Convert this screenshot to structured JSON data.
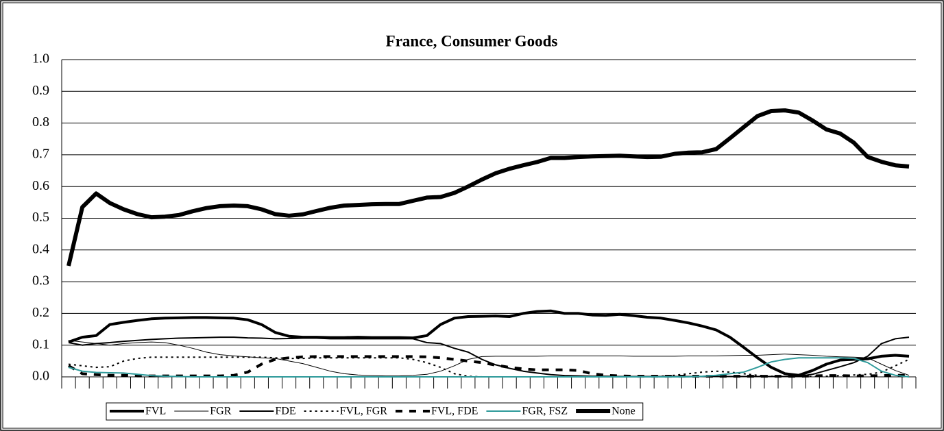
{
  "chart_data": {
    "type": "line",
    "title": "France, Consumer Goods",
    "categories": [
      null,
      null,
      null,
      null,
      null,
      null,
      null,
      null,
      null,
      null,
      null,
      null,
      null,
      null,
      null,
      null,
      null,
      null,
      null,
      null,
      null,
      null,
      null,
      null,
      null,
      null,
      null,
      null,
      null,
      null,
      null,
      null,
      null,
      null,
      null,
      null,
      null,
      null,
      null,
      null,
      null,
      null,
      null,
      null,
      null,
      null,
      null,
      null,
      null,
      null,
      null,
      null,
      null,
      null,
      null,
      null,
      null,
      null,
      null,
      null,
      null,
      null
    ],
    "ylim": [
      0,
      1
    ],
    "yticks": [
      {
        "value": 0,
        "label": "0.0"
      },
      0.1,
      0.2,
      0.3,
      0.4,
      0.5,
      0.6,
      0.7,
      0.8,
      0.9,
      {
        "value": 1,
        "label": "1.0"
      }
    ],
    "grid": true,
    "legend": "bottom",
    "series": [
      {
        "name": "FVL",
        "color": "#000000",
        "width": 4,
        "dash": "solid",
        "values": [
          0.11,
          0.125,
          0.13,
          0.165,
          0.172,
          0.178,
          0.183,
          0.185,
          0.186,
          0.187,
          0.187,
          0.186,
          0.185,
          0.18,
          0.165,
          0.14,
          0.128,
          0.125,
          0.125,
          0.124,
          0.124,
          0.125,
          0.124,
          0.124,
          0.124,
          0.123,
          0.13,
          0.165,
          0.185,
          0.19,
          0.191,
          0.192,
          0.19,
          0.2,
          0.206,
          0.208,
          0.2,
          0.2,
          0.195,
          0.194,
          0.197,
          0.193,
          0.188,
          0.185,
          0.178,
          0.17,
          0.16,
          0.148,
          0.125,
          0.093,
          0.06,
          0.03,
          0.01,
          0.005,
          0.02,
          0.04,
          0.053,
          0.055,
          0.057,
          0.065,
          0.068,
          0.065
        ]
      },
      {
        "name": "FGR",
        "color": "#000000",
        "width": 1,
        "dash": "solid",
        "values": [
          0.115,
          0.11,
          0.105,
          0.1,
          0.105,
          0.108,
          0.11,
          0.108,
          0.1,
          0.09,
          0.078,
          0.07,
          0.066,
          0.063,
          0.06,
          0.058,
          0.05,
          0.042,
          0.03,
          0.018,
          0.01,
          0.006,
          0.004,
          0.003,
          0.003,
          0.005,
          0.008,
          0.018,
          0.035,
          0.055,
          0.064,
          0.065,
          0.065,
          0.065,
          0.065,
          0.066,
          0.066,
          0.066,
          0.066,
          0.066,
          0.066,
          0.065,
          0.065,
          0.065,
          0.065,
          0.066,
          0.066,
          0.066,
          0.067,
          0.068,
          0.068,
          0.07,
          0.072,
          0.07,
          0.068,
          0.065,
          0.063,
          0.062,
          0.06,
          0.04,
          0.02,
          0.005
        ]
      },
      {
        "name": "FDE",
        "color": "#000000",
        "width": 2,
        "dash": "solid",
        "values": [
          0.108,
          0.1,
          0.105,
          0.108,
          0.112,
          0.115,
          0.118,
          0.12,
          0.122,
          0.123,
          0.124,
          0.125,
          0.125,
          0.123,
          0.122,
          0.12,
          0.121,
          0.122,
          0.122,
          0.12,
          0.12,
          0.12,
          0.12,
          0.12,
          0.12,
          0.12,
          0.108,
          0.105,
          0.09,
          0.078,
          0.055,
          0.038,
          0.027,
          0.018,
          0.012,
          0.007,
          0.004,
          0.003,
          0.002,
          0.002,
          0.001,
          0.001,
          0.001,
          0.001,
          0.001,
          0.001,
          0.001,
          0.001,
          0.001,
          0.001,
          0.001,
          0.001,
          0.001,
          0.002,
          0.008,
          0.02,
          0.032,
          0.045,
          0.065,
          0.105,
          0.12,
          0.125
        ]
      },
      {
        "name": "FVL, FGR",
        "color": "#000000",
        "width": 2,
        "dash": "3,5",
        "values": [
          0.04,
          0.035,
          0.03,
          0.032,
          0.05,
          0.058,
          0.062,
          0.062,
          0.062,
          0.062,
          0.062,
          0.062,
          0.062,
          0.062,
          0.062,
          0.06,
          0.058,
          0.058,
          0.06,
          0.06,
          0.06,
          0.06,
          0.06,
          0.06,
          0.06,
          0.055,
          0.045,
          0.03,
          0.01,
          0.002,
          0,
          0,
          0,
          0,
          0,
          0,
          0,
          0,
          0,
          0,
          0,
          0,
          0,
          0.002,
          0.005,
          0.01,
          0.015,
          0.018,
          0.015,
          0.01,
          0.005,
          0.002,
          0.001,
          0.001,
          0.001,
          0.002,
          0.004,
          0.006,
          0.008,
          0.015,
          0.035,
          0.055
        ]
      },
      {
        "name": "FVL, FDE",
        "color": "#000000",
        "width": 4,
        "dash": "10,10",
        "values": [
          0.035,
          0.01,
          0.007,
          0.005,
          0.005,
          0.003,
          0.003,
          0.003,
          0.003,
          0.003,
          0.003,
          0.003,
          0.005,
          0.015,
          0.04,
          0.055,
          0.06,
          0.063,
          0.064,
          0.064,
          0.064,
          0.064,
          0.064,
          0.064,
          0.064,
          0.064,
          0.063,
          0.06,
          0.055,
          0.05,
          0.045,
          0.037,
          0.03,
          0.025,
          0.022,
          0.022,
          0.022,
          0.02,
          0.01,
          0.005,
          0.003,
          0.002,
          0.002,
          0.002,
          0.002,
          0.002,
          0.002,
          0.002,
          0.002,
          0.002,
          0.002,
          0.002,
          0.002,
          0.002,
          0.003,
          0.004,
          0.004,
          0.003,
          0.003,
          0.004,
          0.005,
          0.005
        ]
      },
      {
        "name": "FGR, FSZ",
        "color": "#2e9a9a",
        "width": 2,
        "dash": "solid",
        "values": [
          0.03,
          0.018,
          0.014,
          0.013,
          0.012,
          0.008,
          0.004,
          0.002,
          0.001,
          0,
          0,
          0,
          0,
          0,
          0,
          0,
          0,
          0,
          0,
          0,
          0,
          0,
          0,
          0,
          0,
          0,
          0,
          0,
          0,
          0,
          0,
          0,
          0,
          0,
          0,
          0,
          0,
          0,
          0,
          0,
          0,
          0,
          0,
          0,
          0,
          0,
          0.002,
          0.005,
          0.01,
          0.015,
          0.03,
          0.047,
          0.055,
          0.06,
          0.06,
          0.06,
          0.06,
          0.058,
          0.045,
          0.018,
          0.005,
          0
        ]
      },
      {
        "name": "None",
        "color": "#000000",
        "width": 6,
        "dash": "solid",
        "values": [
          0.35,
          0.535,
          0.578,
          0.548,
          0.528,
          0.513,
          0.503,
          0.505,
          0.51,
          0.522,
          0.532,
          0.538,
          0.54,
          0.538,
          0.528,
          0.513,
          0.508,
          0.512,
          0.523,
          0.533,
          0.54,
          0.542,
          0.544,
          0.545,
          0.545,
          0.555,
          0.565,
          0.567,
          0.58,
          0.6,
          0.622,
          0.642,
          0.656,
          0.667,
          0.677,
          0.69,
          0.69,
          0.693,
          0.695,
          0.696,
          0.697,
          0.695,
          0.693,
          0.694,
          0.703,
          0.707,
          0.708,
          0.718,
          0.752,
          0.787,
          0.822,
          0.838,
          0.84,
          0.833,
          0.808,
          0.78,
          0.767,
          0.738,
          0.693,
          0.678,
          0.667,
          0.663
        ]
      }
    ]
  }
}
